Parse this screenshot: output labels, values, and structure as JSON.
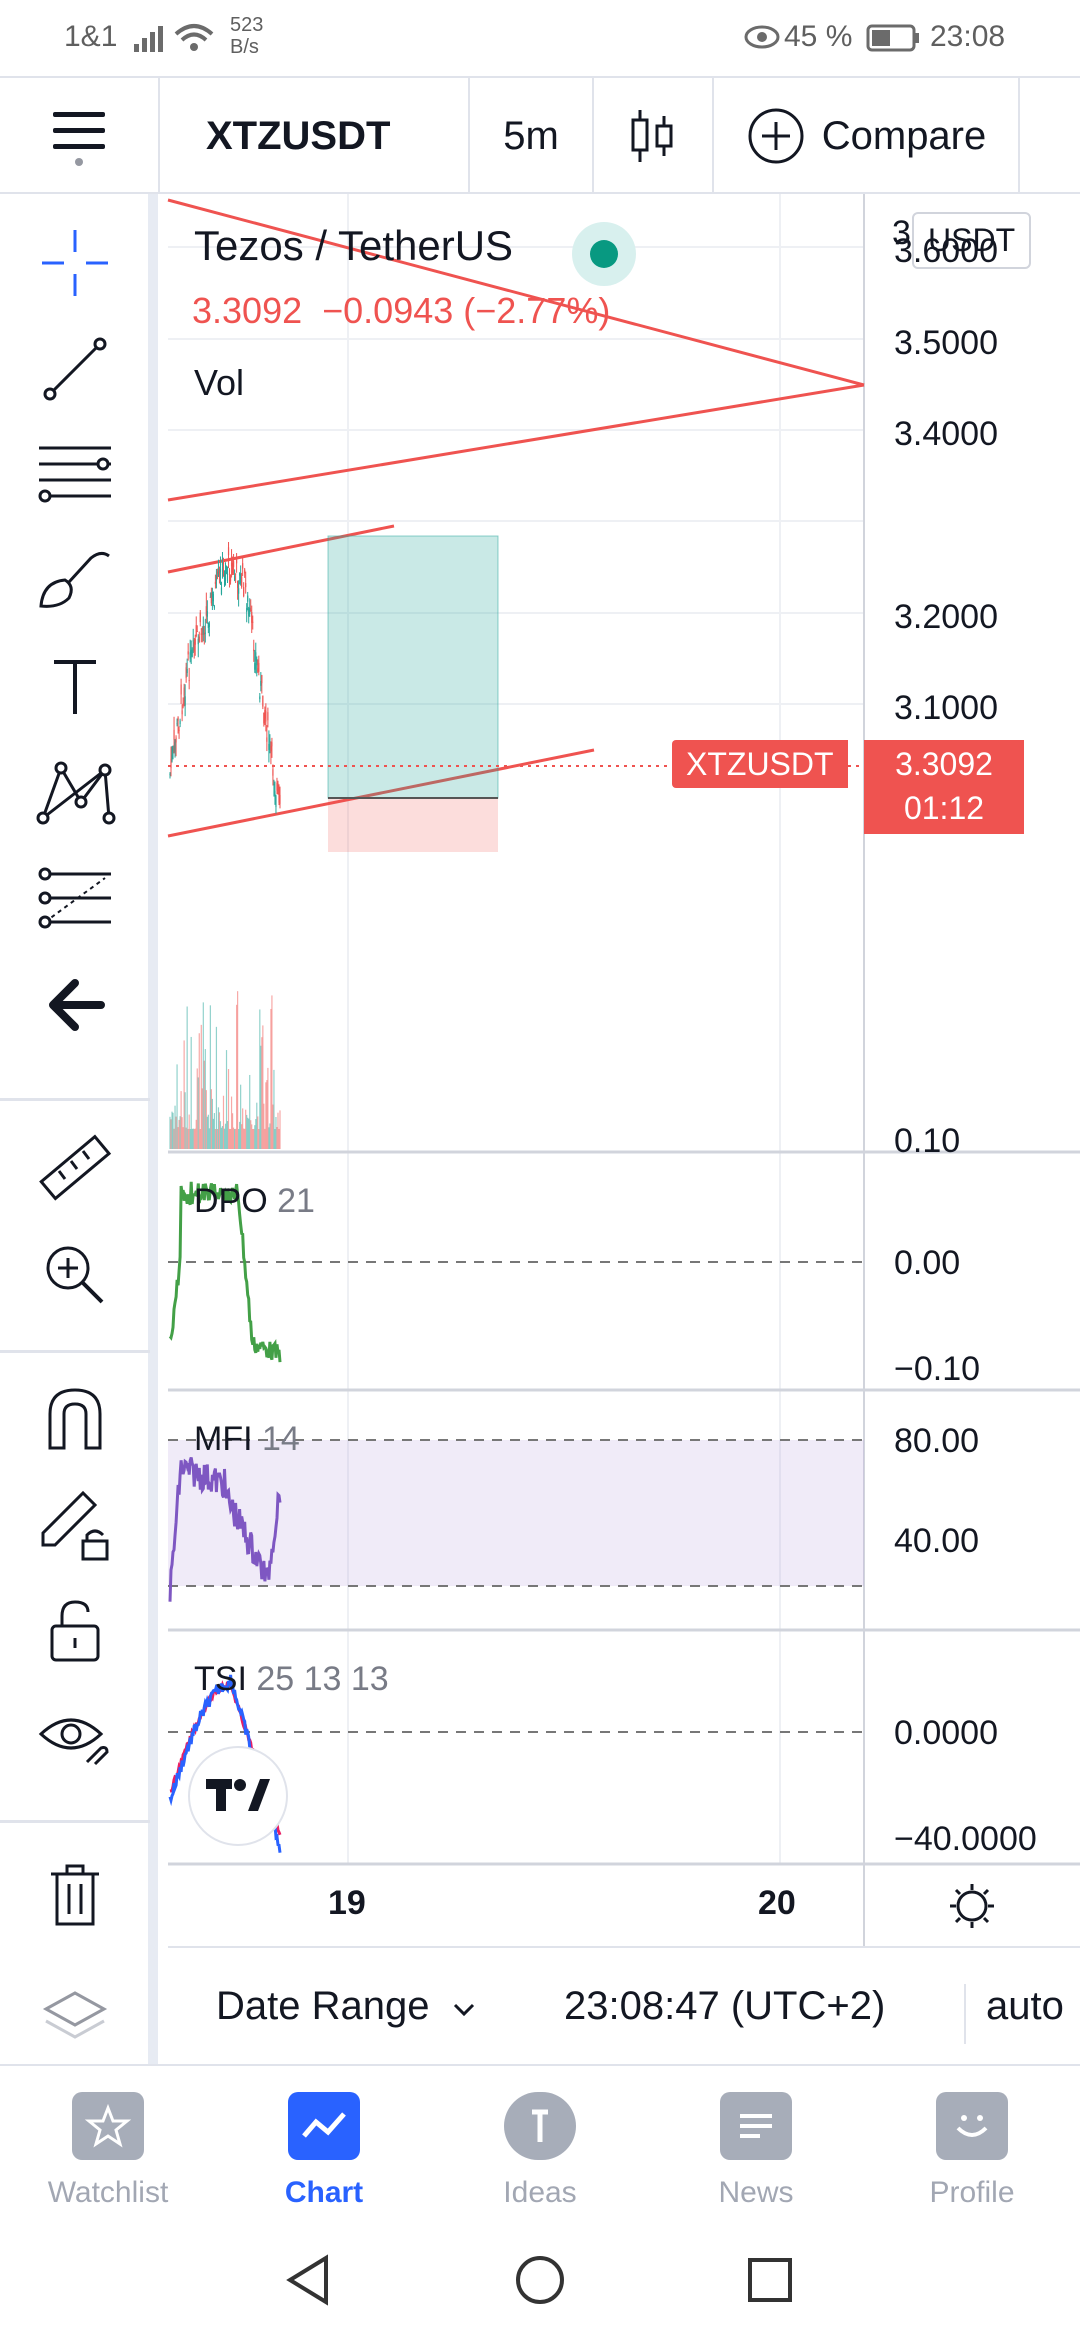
{
  "status_bar": {
    "carrier": "1&1",
    "net_speed_value": "523",
    "net_speed_unit": "B/s",
    "battery": "45 %",
    "time": "23:08"
  },
  "toolbar": {
    "symbol": "XTZUSDT",
    "interval": "5m",
    "compare_label": "Compare"
  },
  "legend": {
    "title": "Tezos / TetherUS",
    "price": "3.3092",
    "change": "−0.0943 (−2.77%)",
    "volume_label": "Vol"
  },
  "currency_badge": "USDT",
  "price_axis": {
    "top_cut": "3",
    "labels": [
      "3.6000",
      "3.5000",
      "3.4000",
      "3.2000",
      "3.1000"
    ]
  },
  "price_tag": {
    "symbol": "XTZUSDT",
    "price": "3.3092",
    "countdown": "01:12"
  },
  "indicators": {
    "dpo": {
      "name": "DPO",
      "params": "21",
      "axis": [
        "0.10",
        "0.00",
        "−0.10"
      ]
    },
    "mfi": {
      "name": "MFI",
      "params": "14",
      "axis": [
        "80.00",
        "40.00"
      ]
    },
    "tsi": {
      "name": "TSI",
      "params": "25 13 13",
      "axis": [
        "0.0000",
        "−40.0000"
      ]
    }
  },
  "time_axis": [
    "19",
    "20"
  ],
  "bottom_bar": {
    "date_range": "Date Range",
    "clock": "23:08:47 (UTC+2)",
    "scale_mode": "auto"
  },
  "bottom_nav": [
    {
      "label": "Watchlist",
      "icon": "star-icon"
    },
    {
      "label": "Chart",
      "icon": "chart-icon"
    },
    {
      "label": "Ideas",
      "icon": "lightbulb-icon"
    },
    {
      "label": "News",
      "icon": "newspaper-icon"
    },
    {
      "label": "Profile",
      "icon": "smile-icon"
    }
  ],
  "colors": {
    "accent": "#2962ff",
    "down": "#ef5350",
    "up": "#26a69a",
    "mfi": "#7e57c2",
    "tsi_blue": "#2962ff",
    "tsi_red": "#e91e63"
  }
}
